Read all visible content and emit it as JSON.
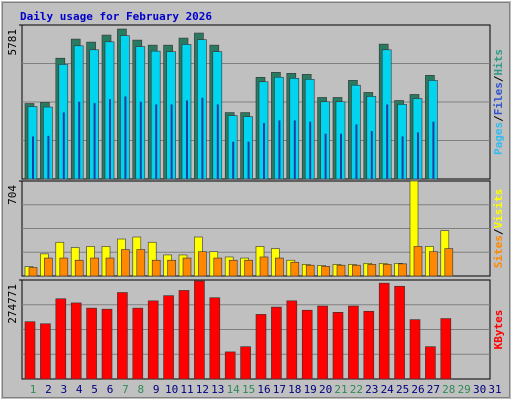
{
  "chart_data": {
    "type": "bar",
    "title": "Daily usage for February 2026",
    "categories": [
      "1",
      "2",
      "3",
      "4",
      "5",
      "6",
      "7",
      "8",
      "9",
      "10",
      "11",
      "12",
      "13",
      "14",
      "15",
      "16",
      "17",
      "18",
      "19",
      "20",
      "21",
      "22",
      "23",
      "24",
      "25",
      "26",
      "27",
      "28",
      "29",
      "30",
      "31"
    ],
    "category_colors": [
      "#2e8b57",
      "#000080",
      "#000080",
      "#000080",
      "#000080",
      "#000080",
      "#2e8b57",
      "#2e8b57",
      "#000080",
      "#000080",
      "#000080",
      "#000080",
      "#000080",
      "#2e8b57",
      "#2e8b57",
      "#000080",
      "#000080",
      "#000080",
      "#000080",
      "#000080",
      "#2e8b57",
      "#2e8b57",
      "#000080",
      "#000080",
      "#000080",
      "#000080",
      "#000080",
      "#2e8b57",
      "#2e8b57",
      "#000080",
      "#000080"
    ],
    "separator": "/",
    "panels": [
      {
        "ylim": [
          0,
          5781
        ],
        "yticks": [
          5781
        ],
        "series": [
          {
            "name": "Pages",
            "color": "#2040a0",
            "label_color": "#33bbee",
            "values": [
              1600,
              1620,
              2500,
              2900,
              2850,
              3000,
              3100,
              2900,
              2800,
              2800,
              2950,
              3050,
              2800,
              1400,
              1400,
              2100,
              2200,
              2200,
              2150,
              1700,
              1700,
              2050,
              1800,
              2800,
              1600,
              1750,
              2150,
              null,
              null,
              null,
              null
            ]
          },
          {
            "name": "Files",
            "color": "#00d4ee",
            "label_color": "#3355cc",
            "values": [
              2720,
              2700,
              4300,
              5000,
              4850,
              5150,
              5380,
              4970,
              4800,
              4780,
              5050,
              5230,
              4780,
              2380,
              2340,
              3650,
              3820,
              3780,
              3740,
              2900,
              2900,
              3520,
              3100,
              4850,
              2800,
              3020,
              3700,
              null,
              null,
              null,
              null
            ]
          },
          {
            "name": "Hits",
            "color": "#2a7a62",
            "label_color": "#339988",
            "values": [
              2834,
              2872,
              4534,
              5252,
              5139,
              5403,
              5630,
              5214,
              5025,
              5025,
              5290,
              5479,
              5025,
              2494,
              2494,
              3816,
              4005,
              3967,
              3929,
              3061,
              3061,
              3703,
              3250,
              5063,
              2947,
              3174,
              3892,
              null,
              null,
              null,
              null
            ]
          }
        ]
      },
      {
        "ylim": [
          0,
          704
        ],
        "yticks": [
          704
        ],
        "series": [
          {
            "name": "Sites",
            "color": "#ff8800",
            "label_color": "#ff8800",
            "values": [
              63,
              133,
              133,
              117,
              133,
              133,
              196,
              196,
              117,
              117,
              133,
              180,
              133,
              117,
              117,
              141,
              133,
              102,
              80,
              72,
              80,
              80,
              86,
              86,
              90,
              219,
              180,
              203,
              null,
              null,
              null
            ]
          },
          {
            "name": "Visits",
            "color": "#ffff00",
            "label_color": "#ffff00",
            "values": [
              70,
              164,
              250,
              211,
              219,
              219,
              274,
              289,
              250,
              156,
              156,
              289,
              180,
              141,
              133,
              219,
              203,
              117,
              86,
              78,
              86,
              86,
              94,
              94,
              94,
              704,
              219,
              336,
              null,
              null,
              null
            ]
          }
        ]
      },
      {
        "ylim": [
          0,
          274771
        ],
        "yticks": [
          274771
        ],
        "series": [
          {
            "name": "KBytes",
            "color": "#ff0000",
            "label_color": "#ff0000",
            "values": [
              159078,
              153293,
              222708,
              211137,
              196678,
              193785,
              240064,
              196678,
              216923,
              231386,
              245849,
              271878,
              225600,
              75200,
              89662,
              179324,
              199570,
              216923,
              190893,
              202463,
              185108,
              202463,
              188001,
              266092,
              257415,
              164862,
              89662,
              167754,
              null,
              null,
              null
            ]
          }
        ]
      }
    ]
  }
}
